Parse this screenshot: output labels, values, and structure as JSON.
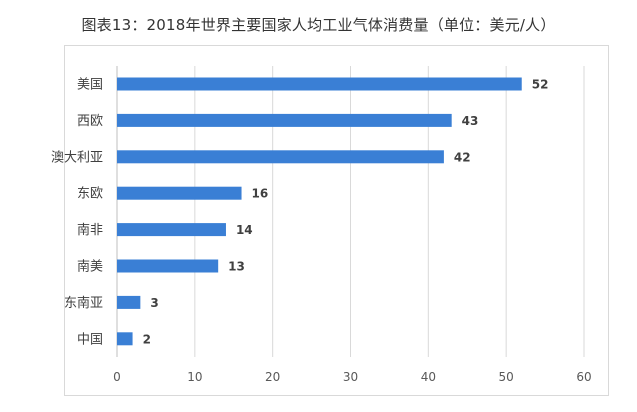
{
  "chart_data": {
    "type": "bar",
    "orientation": "horizontal",
    "title": "图表13：2018年世界主要国家人均工业气体消费量（单位：美元/人）",
    "categories": [
      "美国",
      "西欧",
      "澳大利亚",
      "东欧",
      "南非",
      "南美",
      "东南亚",
      "中国"
    ],
    "values": [
      52,
      43,
      42,
      16,
      14,
      13,
      3,
      2
    ],
    "xlim": [
      0,
      60
    ],
    "x_ticks": [
      0,
      10,
      20,
      30,
      40,
      50,
      60
    ],
    "xlabel": "",
    "ylabel": "",
    "grid": "vertical",
    "bar_color": "#3a7fd5"
  }
}
